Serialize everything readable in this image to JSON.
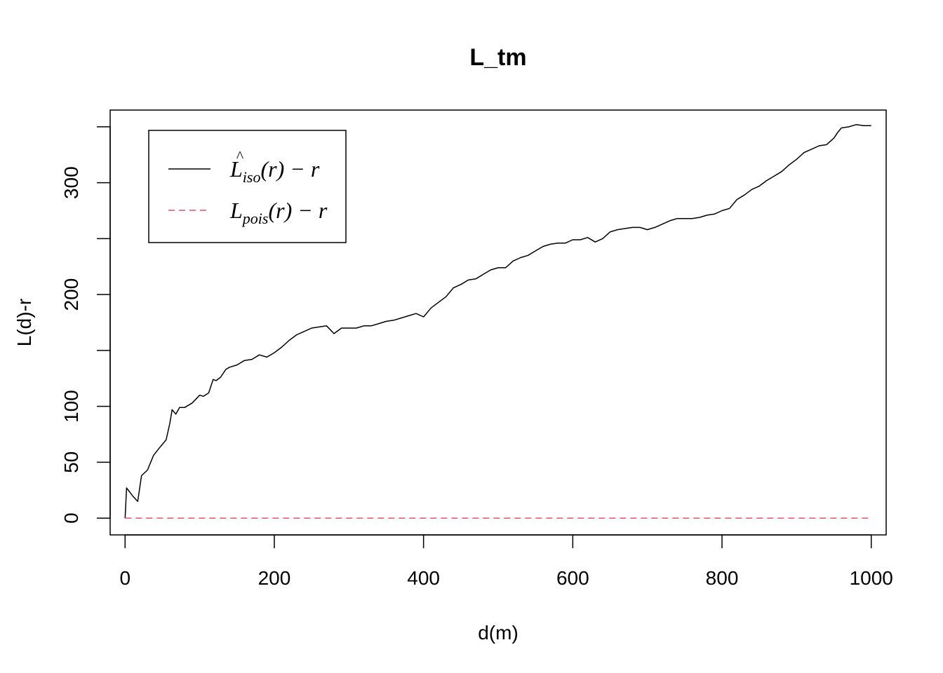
{
  "chart_data": {
    "type": "line",
    "title": "L_tm",
    "xlabel": "d(m)",
    "ylabel": "L(d)-r",
    "xlim": [
      -20,
      1020
    ],
    "ylim": [
      -15,
      365
    ],
    "x_ticks": [
      "0",
      "200",
      "400",
      "600",
      "800",
      "1000"
    ],
    "y_ticks": [
      {
        "value": 0,
        "label": "0"
      },
      {
        "value": 50,
        "label": "50"
      },
      {
        "value": 100,
        "label": "100"
      },
      {
        "value": 150,
        "label": ""
      },
      {
        "value": 200,
        "label": "200"
      },
      {
        "value": 250,
        "label": ""
      },
      {
        "value": 300,
        "label": "300"
      },
      {
        "value": 350,
        "label": ""
      }
    ],
    "legend": {
      "position": "top-left",
      "entries": [
        {
          "main": "L",
          "hat": "^",
          "sub": "iso",
          "rest": "(r) − r",
          "color": "#000000",
          "dash": "solid"
        },
        {
          "main": "L",
          "hat": "",
          "sub": "pois",
          "rest": "(r) − r",
          "color": "#DF536B",
          "dash": "dashed"
        }
      ]
    },
    "series": [
      {
        "label_key": "iso",
        "color": "#000000",
        "dash": "solid",
        "x": [
          0,
          2,
          10,
          17,
          22,
          30,
          38,
          45,
          55,
          60,
          63,
          68,
          73,
          80,
          90,
          100,
          105,
          112,
          118,
          122,
          128,
          135,
          140,
          150,
          160,
          170,
          180,
          190,
          200,
          210,
          220,
          230,
          240,
          250,
          260,
          270,
          280,
          290,
          300,
          310,
          320,
          330,
          340,
          350,
          360,
          370,
          380,
          390,
          400,
          410,
          420,
          430,
          440,
          450,
          460,
          470,
          480,
          490,
          500,
          510,
          520,
          530,
          540,
          550,
          560,
          570,
          580,
          590,
          600,
          610,
          620,
          630,
          640,
          650,
          660,
          670,
          680,
          690,
          700,
          710,
          720,
          730,
          740,
          750,
          760,
          770,
          780,
          790,
          800,
          810,
          820,
          830,
          840,
          850,
          860,
          870,
          880,
          890,
          900,
          910,
          920,
          930,
          940,
          950,
          955,
          960,
          970,
          975,
          980,
          990,
          1000
        ],
        "y": [
          0,
          27,
          20,
          15,
          38,
          43,
          56,
          62,
          70,
          85,
          97,
          93,
          99,
          99,
          103,
          110,
          109,
          112,
          124,
          123,
          126,
          133,
          135,
          137,
          141,
          142,
          146,
          144,
          148,
          153,
          159,
          164,
          167,
          170,
          171,
          172,
          165,
          170,
          170,
          170,
          172,
          172,
          174,
          176,
          177,
          179,
          181,
          183,
          180,
          188,
          193,
          198,
          206,
          209,
          213,
          214,
          218,
          222,
          224,
          224,
          230,
          233,
          235,
          239,
          243,
          245,
          246,
          246,
          249,
          249,
          251,
          247,
          250,
          256,
          258,
          259,
          260,
          260,
          258,
          260,
          263,
          266,
          268,
          268,
          268,
          269,
          271,
          272,
          275,
          277,
          285,
          289,
          294,
          297,
          302,
          306,
          310,
          316,
          321,
          327,
          330,
          333,
          334,
          340,
          345,
          349,
          350,
          351,
          352,
          351,
          351
        ]
      },
      {
        "label_key": "pois",
        "color": "#DF536B",
        "dash": "dashed",
        "x": [
          0,
          1000
        ],
        "y": [
          0,
          0
        ]
      }
    ]
  }
}
